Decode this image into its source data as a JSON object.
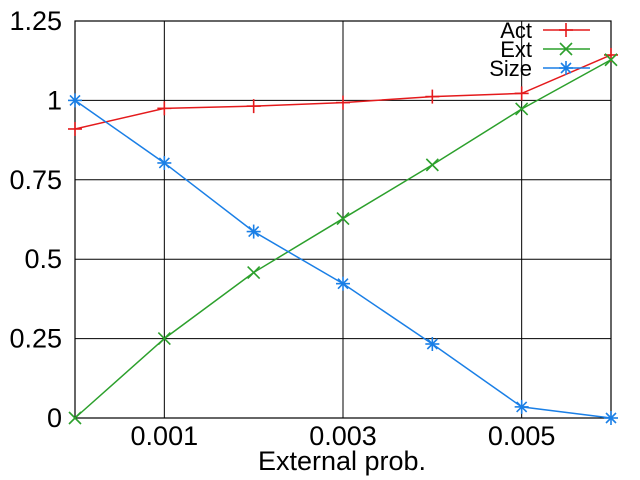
{
  "chart_data": {
    "type": "line",
    "title": "",
    "xlabel": "External prob.",
    "ylabel": "",
    "xlim": [
      0,
      0.006
    ],
    "ylim": [
      0,
      1.25
    ],
    "x_ticks": [
      {
        "value": 0.001,
        "label": "0.001"
      },
      {
        "value": 0.003,
        "label": "0.003"
      },
      {
        "value": 0.005,
        "label": "0.005"
      }
    ],
    "y_ticks": [
      {
        "value": 0,
        "label": "0"
      },
      {
        "value": 0.25,
        "label": "0.25"
      },
      {
        "value": 0.5,
        "label": "0.5"
      },
      {
        "value": 0.75,
        "label": "0.75"
      },
      {
        "value": 1,
        "label": "1"
      },
      {
        "value": 1.25,
        "label": "1.25"
      }
    ],
    "grid": true,
    "legend_position": "top-right",
    "x": [
      0,
      0.001,
      0.002,
      0.003,
      0.004,
      0.005,
      0.006
    ],
    "series": [
      {
        "name": "Act",
        "color": "#e41a1c",
        "marker": "plus",
        "values": [
          0.91,
          0.975,
          0.982,
          0.993,
          1.012,
          1.022,
          1.143
        ]
      },
      {
        "name": "Ext",
        "color": "#2ca02c",
        "marker": "cross",
        "values": [
          0.0,
          0.25,
          0.458,
          0.628,
          0.797,
          0.973,
          1.128
        ]
      },
      {
        "name": "Size",
        "color": "#1a7fe6",
        "marker": "star",
        "values": [
          1.0,
          0.803,
          0.587,
          0.423,
          0.233,
          0.035,
          0.0
        ]
      }
    ]
  }
}
